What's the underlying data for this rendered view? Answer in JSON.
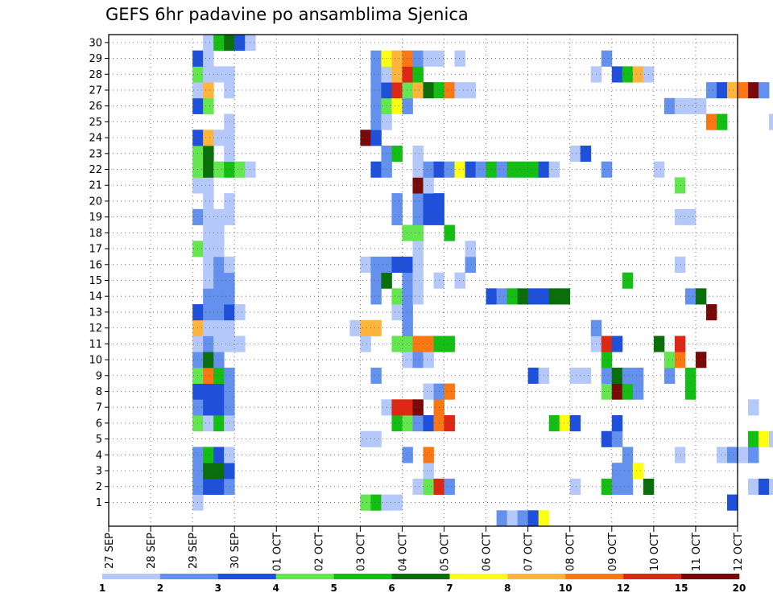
{
  "chart_data": {
    "type": "heatmap",
    "title": "GEFS 6hr padavine po ansamblima Sjenica",
    "xlabel": "",
    "ylabel": "",
    "x_ticks": [
      "27 SEP",
      "28 SEP",
      "29 SEP",
      "30 SEP",
      "01 OCT",
      "02 OCT",
      "03 OCT",
      "04 OCT",
      "05 OCT",
      "06 OCT",
      "07 OCT",
      "08 OCT",
      "09 OCT",
      "10 OCT",
      "11 OCT",
      "12 OCT"
    ],
    "y_ticks": [
      "1",
      "2",
      "3",
      "4",
      "5",
      "6",
      "7",
      "8",
      "9",
      "10",
      "11",
      "12",
      "13",
      "14",
      "15",
      "16",
      "17",
      "18",
      "19",
      "20",
      "21",
      "22",
      "23",
      "24",
      "25",
      "26",
      "27",
      "28",
      "29",
      "30"
    ],
    "time_steps_per_day": 4,
    "grid": "dotted",
    "legend": {
      "placement": "bottom",
      "colors": [
        "#b4c8fa",
        "#6490ee",
        "#1e50dc",
        "#64e650",
        "#14be14",
        "#0a6e0a",
        "#ffff14",
        "#ffb43c",
        "#fa7814",
        "#dc2814",
        "#780a0a"
      ],
      "labels": [
        "1",
        "2",
        "3",
        "4",
        "5",
        "6",
        "7",
        "8",
        "10",
        "12",
        "15",
        "20"
      ]
    },
    "cells": [
      [
        8,
        1,
        0
      ],
      [
        8,
        2,
        1
      ],
      [
        8,
        3,
        1
      ],
      [
        8,
        4,
        1
      ],
      [
        8,
        6,
        3
      ],
      [
        8,
        7,
        1
      ],
      [
        8,
        8,
        2
      ],
      [
        8,
        9,
        3
      ],
      [
        8,
        10,
        1
      ],
      [
        8,
        11,
        0
      ],
      [
        8,
        12,
        7
      ],
      [
        8,
        13,
        2
      ],
      [
        8,
        17,
        3
      ],
      [
        8,
        19,
        1
      ],
      [
        8,
        21,
        0
      ],
      [
        8,
        22,
        3
      ],
      [
        8,
        23,
        3
      ],
      [
        8,
        24,
        2
      ],
      [
        8,
        26,
        2
      ],
      [
        8,
        27,
        0
      ],
      [
        8,
        28,
        3
      ],
      [
        8,
        29,
        2
      ],
      [
        9,
        2,
        2
      ],
      [
        9,
        3,
        5
      ],
      [
        9,
        4,
        4
      ],
      [
        9,
        6,
        0
      ],
      [
        9,
        7,
        2
      ],
      [
        9,
        8,
        2
      ],
      [
        9,
        9,
        8
      ],
      [
        9,
        10,
        5
      ],
      [
        9,
        11,
        1
      ],
      [
        9,
        12,
        0
      ],
      [
        9,
        13,
        1
      ],
      [
        9,
        14,
        1
      ],
      [
        9,
        15,
        0
      ],
      [
        9,
        16,
        0
      ],
      [
        9,
        17,
        0
      ],
      [
        9,
        18,
        0
      ],
      [
        9,
        19,
        0
      ],
      [
        9,
        20,
        0
      ],
      [
        9,
        21,
        0
      ],
      [
        9,
        22,
        5
      ],
      [
        9,
        23,
        5
      ],
      [
        9,
        24,
        7
      ],
      [
        9,
        26,
        3
      ],
      [
        9,
        27,
        7
      ],
      [
        9,
        28,
        0
      ],
      [
        9,
        29,
        0
      ],
      [
        9,
        30,
        0
      ],
      [
        10,
        2,
        2
      ],
      [
        10,
        3,
        5
      ],
      [
        10,
        4,
        2
      ],
      [
        10,
        6,
        4
      ],
      [
        10,
        7,
        2
      ],
      [
        10,
        8,
        2
      ],
      [
        10,
        9,
        4
      ],
      [
        10,
        10,
        1
      ],
      [
        10,
        11,
        0
      ],
      [
        10,
        12,
        0
      ],
      [
        10,
        13,
        1
      ],
      [
        10,
        14,
        1
      ],
      [
        10,
        15,
        1
      ],
      [
        10,
        16,
        1
      ],
      [
        10,
        17,
        0
      ],
      [
        10,
        18,
        0
      ],
      [
        10,
        19,
        0
      ],
      [
        10,
        22,
        3
      ],
      [
        10,
        24,
        0
      ],
      [
        10,
        28,
        0
      ],
      [
        10,
        30,
        4
      ],
      [
        11,
        2,
        1
      ],
      [
        11,
        3,
        2
      ],
      [
        11,
        4,
        0
      ],
      [
        11,
        6,
        0
      ],
      [
        11,
        7,
        1
      ],
      [
        11,
        8,
        1
      ],
      [
        11,
        9,
        1
      ],
      [
        11,
        11,
        0
      ],
      [
        11,
        12,
        0
      ],
      [
        11,
        13,
        2
      ],
      [
        11,
        14,
        1
      ],
      [
        11,
        15,
        1
      ],
      [
        11,
        16,
        0
      ],
      [
        11,
        19,
        0
      ],
      [
        11,
        20,
        0
      ],
      [
        11,
        22,
        4
      ],
      [
        11,
        23,
        0
      ],
      [
        11,
        24,
        0
      ],
      [
        11,
        25,
        0
      ],
      [
        11,
        27,
        0
      ],
      [
        11,
        28,
        0
      ],
      [
        11,
        30,
        5
      ],
      [
        12,
        11,
        0
      ],
      [
        12,
        13,
        0
      ],
      [
        12,
        22,
        3
      ],
      [
        12,
        30,
        2
      ],
      [
        13,
        22,
        0
      ],
      [
        13,
        30,
        0
      ],
      [
        23,
        12,
        0
      ],
      [
        24,
        1,
        3
      ],
      [
        24,
        5,
        0
      ],
      [
        24,
        11,
        0
      ],
      [
        24,
        12,
        7
      ],
      [
        24,
        16,
        0
      ],
      [
        24,
        24,
        10
      ],
      [
        25,
        1,
        4
      ],
      [
        25,
        5,
        0
      ],
      [
        25,
        9,
        1
      ],
      [
        25,
        12,
        7
      ],
      [
        25,
        14,
        1
      ],
      [
        25,
        15,
        1
      ],
      [
        25,
        16,
        1
      ],
      [
        25,
        22,
        2
      ],
      [
        25,
        24,
        2
      ],
      [
        25,
        25,
        1
      ],
      [
        25,
        26,
        1
      ],
      [
        25,
        27,
        1
      ],
      [
        25,
        28,
        1
      ],
      [
        25,
        29,
        1
      ],
      [
        26,
        1,
        0
      ],
      [
        26,
        7,
        0
      ],
      [
        26,
        15,
        5
      ],
      [
        26,
        16,
        1
      ],
      [
        26,
        22,
        1
      ],
      [
        26,
        23,
        1
      ],
      [
        26,
        25,
        0
      ],
      [
        26,
        26,
        3
      ],
      [
        26,
        27,
        2
      ],
      [
        26,
        28,
        0
      ],
      [
        26,
        29,
        6
      ],
      [
        27,
        1,
        0
      ],
      [
        27,
        6,
        4
      ],
      [
        27,
        7,
        9
      ],
      [
        27,
        11,
        3
      ],
      [
        27,
        13,
        0
      ],
      [
        27,
        14,
        3
      ],
      [
        27,
        16,
        2
      ],
      [
        27,
        19,
        1
      ],
      [
        27,
        20,
        1
      ],
      [
        27,
        23,
        4
      ],
      [
        27,
        26,
        6
      ],
      [
        27,
        27,
        9
      ],
      [
        27,
        28,
        7
      ],
      [
        27,
        29,
        7
      ],
      [
        28,
        4,
        1
      ],
      [
        28,
        6,
        3
      ],
      [
        28,
        7,
        9
      ],
      [
        28,
        10,
        0
      ],
      [
        28,
        11,
        3
      ],
      [
        28,
        12,
        1
      ],
      [
        28,
        13,
        1
      ],
      [
        28,
        14,
        1
      ],
      [
        28,
        15,
        1
      ],
      [
        28,
        16,
        2
      ],
      [
        28,
        18,
        3
      ],
      [
        28,
        26,
        1
      ],
      [
        28,
        27,
        3
      ],
      [
        28,
        28,
        9
      ],
      [
        28,
        29,
        8
      ],
      [
        29,
        2,
        0
      ],
      [
        29,
        6,
        1
      ],
      [
        29,
        7,
        10
      ],
      [
        29,
        10,
        1
      ],
      [
        29,
        11,
        8
      ],
      [
        29,
        14,
        0
      ],
      [
        29,
        15,
        0
      ],
      [
        29,
        16,
        0
      ],
      [
        29,
        17,
        0
      ],
      [
        29,
        18,
        3
      ],
      [
        29,
        19,
        1
      ],
      [
        29,
        20,
        1
      ],
      [
        29,
        21,
        10
      ],
      [
        29,
        22,
        0
      ],
      [
        29,
        23,
        0
      ],
      [
        29,
        27,
        7
      ],
      [
        29,
        28,
        4
      ],
      [
        29,
        29,
        1
      ],
      [
        30,
        2,
        3
      ],
      [
        30,
        3,
        0
      ],
      [
        30,
        4,
        8
      ],
      [
        30,
        6,
        2
      ],
      [
        30,
        8,
        0
      ],
      [
        30,
        10,
        0
      ],
      [
        30,
        11,
        8
      ],
      [
        30,
        19,
        2
      ],
      [
        30,
        20,
        2
      ],
      [
        30,
        21,
        0
      ],
      [
        30,
        22,
        1
      ],
      [
        30,
        27,
        5
      ],
      [
        30,
        29,
        0
      ],
      [
        31,
        2,
        9
      ],
      [
        31,
        6,
        8
      ],
      [
        31,
        7,
        8
      ],
      [
        31,
        8,
        1
      ],
      [
        31,
        11,
        4
      ],
      [
        31,
        15,
        0
      ],
      [
        31,
        19,
        2
      ],
      [
        31,
        20,
        2
      ],
      [
        31,
        22,
        2
      ],
      [
        31,
        27,
        4
      ],
      [
        31,
        29,
        0
      ],
      [
        32,
        2,
        1
      ],
      [
        32,
        6,
        9
      ],
      [
        32,
        8,
        8
      ],
      [
        32,
        11,
        4
      ],
      [
        32,
        18,
        4
      ],
      [
        32,
        22,
        1
      ],
      [
        32,
        27,
        8
      ],
      [
        33,
        15,
        0
      ],
      [
        33,
        22,
        6
      ],
      [
        33,
        27,
        0
      ],
      [
        33,
        29,
        0
      ],
      [
        34,
        16,
        1
      ],
      [
        34,
        17,
        0
      ],
      [
        34,
        22,
        2
      ],
      [
        34,
        27,
        0
      ],
      [
        35,
        22,
        1
      ],
      [
        36,
        14,
        2
      ],
      [
        36,
        22,
        4
      ],
      [
        37,
        0,
        1
      ],
      [
        37,
        14,
        1
      ],
      [
        37,
        22,
        1
      ],
      [
        38,
        0,
        0
      ],
      [
        38,
        14,
        4
      ],
      [
        38,
        22,
        4
      ],
      [
        39,
        0,
        1
      ],
      [
        39,
        14,
        5
      ],
      [
        39,
        22,
        4
      ],
      [
        40,
        0,
        2
      ],
      [
        40,
        9,
        2
      ],
      [
        40,
        14,
        2
      ],
      [
        40,
        22,
        4
      ],
      [
        41,
        0,
        6
      ],
      [
        41,
        9,
        0
      ],
      [
        41,
        14,
        2
      ],
      [
        41,
        22,
        2
      ],
      [
        42,
        6,
        4
      ],
      [
        42,
        14,
        5
      ],
      [
        42,
        22,
        0
      ],
      [
        43,
        6,
        6
      ],
      [
        43,
        14,
        5
      ],
      [
        44,
        2,
        0
      ],
      [
        44,
        6,
        2
      ],
      [
        44,
        9,
        0
      ],
      [
        44,
        23,
        0
      ],
      [
        45,
        9,
        0
      ],
      [
        45,
        23,
        2
      ],
      [
        46,
        11,
        0
      ],
      [
        46,
        12,
        1
      ],
      [
        46,
        28,
        0
      ],
      [
        47,
        2,
        4
      ],
      [
        47,
        5,
        2
      ],
      [
        47,
        8,
        3
      ],
      [
        47,
        9,
        1
      ],
      [
        47,
        10,
        4
      ],
      [
        47,
        11,
        9
      ],
      [
        47,
        22,
        1
      ],
      [
        47,
        29,
        1
      ],
      [
        48,
        2,
        1
      ],
      [
        48,
        3,
        1
      ],
      [
        48,
        5,
        1
      ],
      [
        48,
        6,
        2
      ],
      [
        48,
        8,
        10
      ],
      [
        48,
        9,
        5
      ],
      [
        48,
        11,
        2
      ],
      [
        48,
        28,
        2
      ],
      [
        49,
        2,
        1
      ],
      [
        49,
        3,
        1
      ],
      [
        49,
        4,
        1
      ],
      [
        49,
        8,
        4
      ],
      [
        49,
        9,
        1
      ],
      [
        49,
        15,
        4
      ],
      [
        49,
        28,
        4
      ],
      [
        50,
        3,
        6
      ],
      [
        50,
        8,
        1
      ],
      [
        50,
        9,
        1
      ],
      [
        50,
        28,
        7
      ],
      [
        51,
        2,
        5
      ],
      [
        51,
        28,
        0
      ],
      [
        52,
        11,
        5
      ],
      [
        52,
        22,
        0
      ],
      [
        53,
        9,
        1
      ],
      [
        53,
        10,
        3
      ],
      [
        53,
        26,
        1
      ],
      [
        54,
        4,
        0
      ],
      [
        54,
        10,
        8
      ],
      [
        54,
        11,
        9
      ],
      [
        54,
        16,
        0
      ],
      [
        54,
        19,
        0
      ],
      [
        54,
        21,
        3
      ],
      [
        54,
        26,
        0
      ],
      [
        55,
        8,
        4
      ],
      [
        55,
        9,
        4
      ],
      [
        55,
        14,
        1
      ],
      [
        55,
        19,
        0
      ],
      [
        55,
        26,
        0
      ],
      [
        56,
        10,
        10
      ],
      [
        56,
        14,
        5
      ],
      [
        56,
        26,
        0
      ],
      [
        57,
        13,
        10
      ],
      [
        57,
        25,
        8
      ],
      [
        57,
        27,
        1
      ],
      [
        58,
        4,
        0
      ],
      [
        58,
        25,
        4
      ],
      [
        58,
        27,
        2
      ],
      [
        59,
        1,
        2
      ],
      [
        59,
        4,
        1
      ],
      [
        59,
        27,
        7
      ],
      [
        60,
        4,
        0
      ],
      [
        60,
        27,
        8
      ],
      [
        61,
        2,
        0
      ],
      [
        61,
        4,
        1
      ],
      [
        61,
        5,
        4
      ],
      [
        61,
        7,
        0
      ],
      [
        61,
        27,
        10
      ],
      [
        62,
        2,
        2
      ],
      [
        62,
        5,
        6
      ],
      [
        62,
        27,
        1
      ],
      [
        63,
        2,
        0
      ],
      [
        63,
        5,
        0
      ],
      [
        63,
        25,
        0
      ],
      [
        64,
        25,
        0
      ],
      [
        64,
        27,
        0
      ],
      [
        64,
        29,
        0
      ],
      [
        65,
        25,
        3
      ],
      [
        65,
        27,
        4
      ]
    ]
  }
}
